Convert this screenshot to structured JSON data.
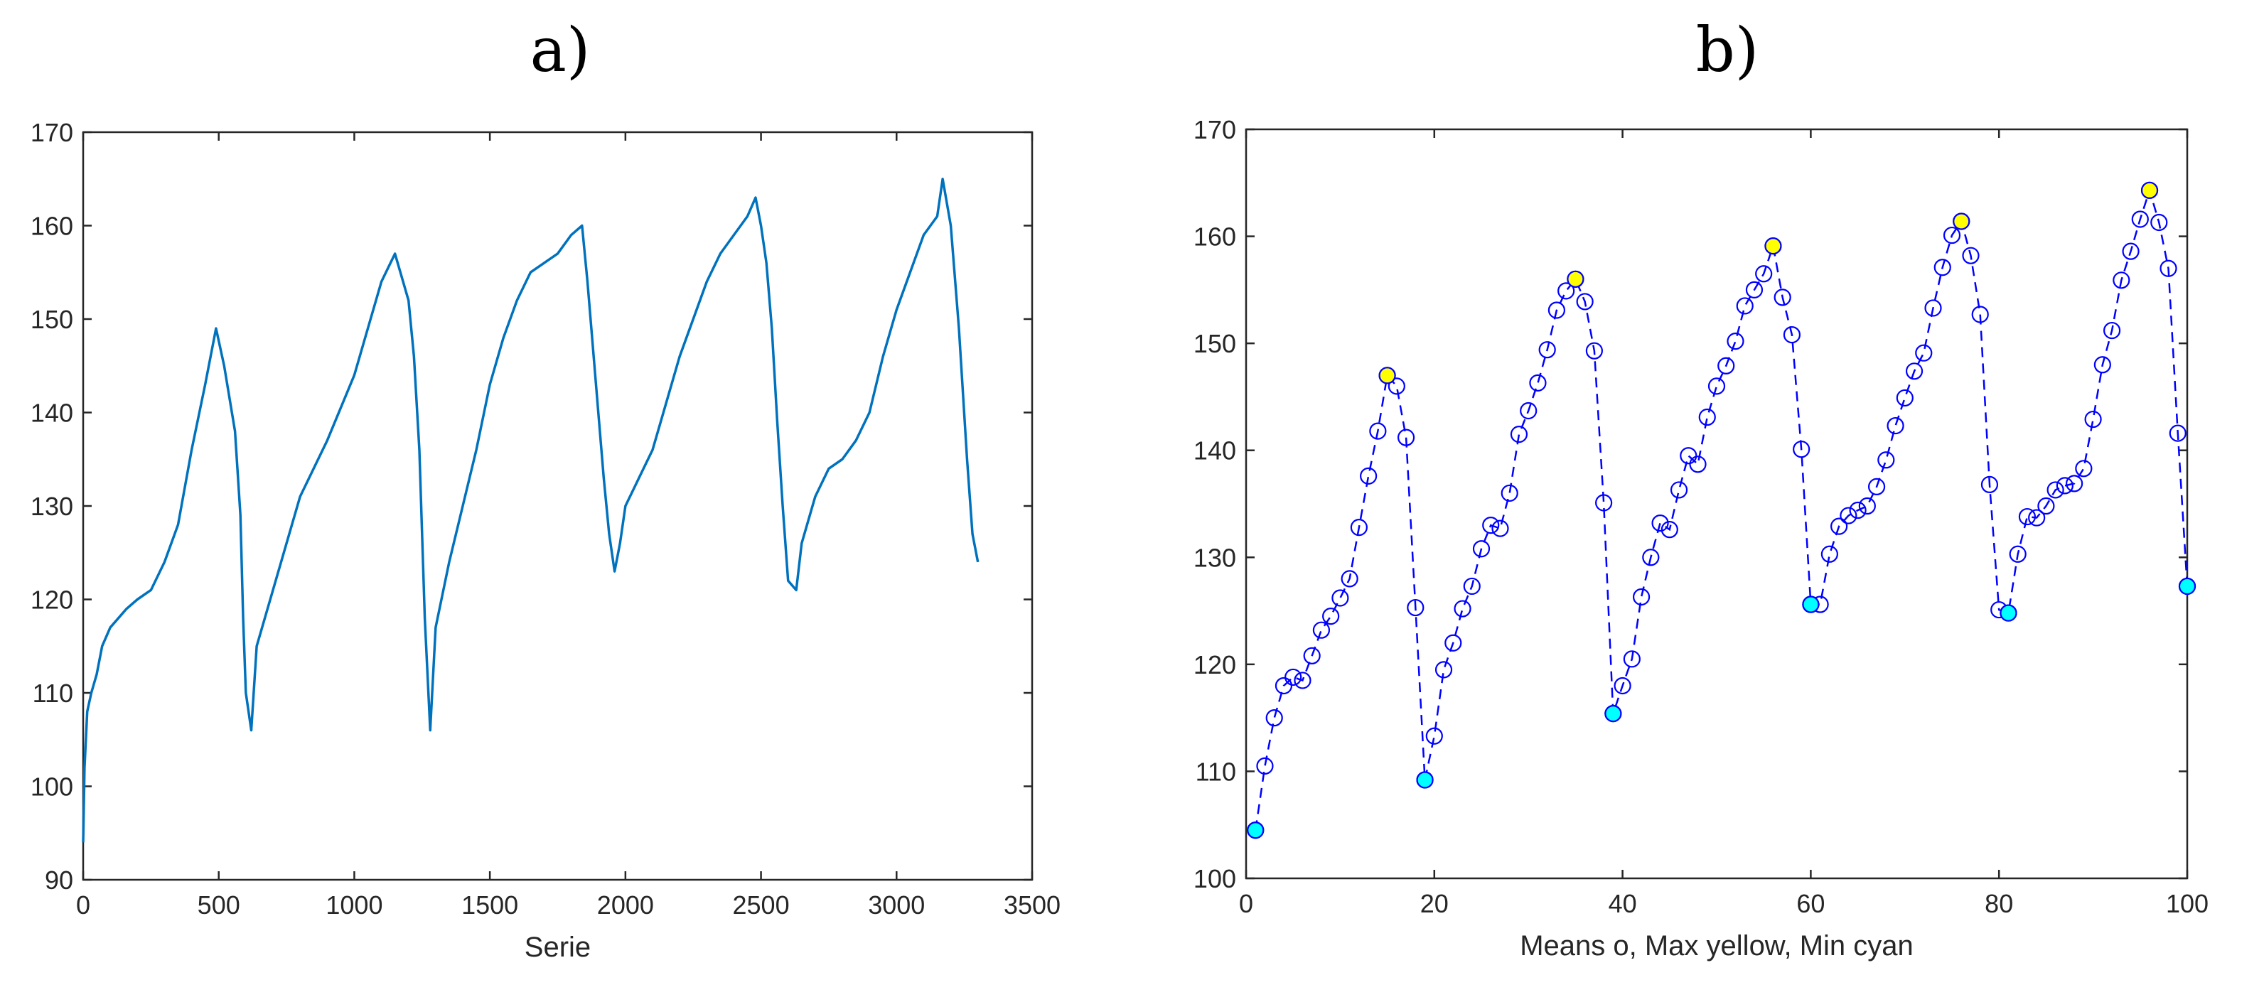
{
  "panels": [
    {
      "label": "a)"
    },
    {
      "label": "b)"
    }
  ],
  "chart_data": [
    {
      "type": "line",
      "title": "",
      "xlabel": "Serie",
      "ylabel": "",
      "xlim": [
        0,
        3500
      ],
      "ylim": [
        90,
        170
      ],
      "xticks": [
        0,
        500,
        1000,
        1500,
        2000,
        2500,
        3000,
        3500
      ],
      "yticks": [
        90,
        100,
        110,
        120,
        130,
        140,
        150,
        160,
        170
      ],
      "grid": false,
      "series": [
        {
          "color": "#0072bd",
          "x": [
            0,
            5,
            15,
            30,
            50,
            70,
            100,
            130,
            160,
            200,
            250,
            300,
            350,
            400,
            450,
            490,
            520,
            560,
            580,
            590,
            600,
            620,
            640,
            700,
            800,
            900,
            1000,
            1100,
            1150,
            1180,
            1200,
            1220,
            1240,
            1260,
            1270,
            1280,
            1300,
            1350,
            1400,
            1450,
            1500,
            1550,
            1600,
            1650,
            1700,
            1750,
            1800,
            1840,
            1860,
            1880,
            1900,
            1920,
            1940,
            1960,
            1980,
            2000,
            2050,
            2100,
            2150,
            2200,
            2250,
            2300,
            2350,
            2400,
            2450,
            2480,
            2500,
            2520,
            2540,
            2560,
            2580,
            2600,
            2630,
            2650,
            2700,
            2750,
            2800,
            2850,
            2900,
            2950,
            3000,
            3050,
            3100,
            3150,
            3170,
            3200,
            3230,
            3260,
            3280,
            3300
          ],
          "y": [
            94,
            102,
            108,
            110,
            112,
            115,
            117,
            118,
            119,
            120,
            121,
            124,
            128,
            136,
            143,
            149,
            145,
            138,
            129,
            118,
            110,
            106,
            115,
            121,
            131,
            137,
            144,
            154,
            157,
            154,
            152,
            146,
            136,
            118,
            112,
            106,
            117,
            124,
            130,
            136,
            143,
            148,
            152,
            155,
            156,
            157,
            159,
            160,
            154,
            147,
            140,
            133,
            127,
            123,
            126,
            130,
            133,
            136,
            141,
            146,
            150,
            154,
            157,
            159,
            161,
            163,
            160,
            156,
            149,
            139,
            130,
            122,
            121,
            126,
            131,
            134,
            135,
            137,
            140,
            146,
            151,
            155,
            159,
            161,
            165,
            160,
            149,
            135,
            127,
            124
          ]
        }
      ]
    },
    {
      "type": "line",
      "title": "",
      "xlabel": "Means o, Max yellow, Min cyan",
      "ylabel": "",
      "xlim": [
        0,
        100
      ],
      "ylim": [
        100,
        170
      ],
      "xticks": [
        0,
        20,
        40,
        60,
        80,
        100
      ],
      "yticks": [
        100,
        110,
        120,
        130,
        140,
        150,
        160,
        170
      ],
      "grid": false,
      "series": [
        {
          "style": "dashed-line-circle-markers",
          "color": "#0000ff",
          "x": [
            1,
            2,
            3,
            4,
            5,
            6,
            7,
            8,
            9,
            10,
            11,
            12,
            13,
            14,
            15,
            16,
            17,
            18,
            19,
            20,
            21,
            22,
            23,
            24,
            25,
            26,
            27,
            28,
            29,
            30,
            31,
            32,
            33,
            34,
            35,
            36,
            37,
            38,
            39,
            40,
            41,
            42,
            43,
            44,
            45,
            46,
            47,
            48,
            49,
            50,
            51,
            52,
            53,
            54,
            55,
            56,
            57,
            58,
            59,
            60,
            61,
            62,
            63,
            64,
            65,
            66,
            67,
            68,
            69,
            70,
            71,
            72,
            73,
            74,
            75,
            76,
            77,
            78,
            79,
            80,
            81,
            82,
            83,
            84,
            85,
            86,
            87,
            88,
            89,
            90,
            91,
            92,
            93,
            94,
            95,
            96,
            97,
            98,
            99,
            100
          ],
          "y": [
            104.5,
            110.5,
            115,
            118,
            118.8,
            118.5,
            120.8,
            123.2,
            124.5,
            126.2,
            128,
            132.8,
            137.6,
            141.8,
            147,
            146,
            141.2,
            125.3,
            109.2,
            113.3,
            119.5,
            122,
            125.2,
            127.3,
            130.8,
            133,
            132.7,
            136,
            141.5,
            143.7,
            146.3,
            149.4,
            153.1,
            154.9,
            156,
            153.9,
            149.3,
            135.1,
            115.4,
            118,
            120.5,
            126.3,
            130,
            133.2,
            132.6,
            136.3,
            139.5,
            138.7,
            143.1,
            146,
            147.9,
            150.2,
            153.5,
            155,
            156.5,
            159.1,
            154.3,
            150.8,
            140.1,
            125.6,
            125.6,
            130.3,
            132.9,
            133.9,
            134.4,
            134.8,
            136.6,
            139.1,
            142.3,
            144.9,
            147.4,
            149.1,
            153.3,
            157.1,
            160.1,
            161.4,
            158.2,
            152.7,
            136.8,
            125.1,
            124.8,
            130.3,
            133.8,
            133.7,
            134.8,
            136.3,
            136.7,
            136.9,
            138.3,
            142.9,
            148,
            151.2,
            155.9,
            158.6,
            161.6,
            164.3,
            161.3,
            157,
            141.6,
            127.3
          ]
        },
        {
          "name": "Max",
          "style": "filled-markers",
          "color": "#ffff00",
          "x": [
            15,
            35,
            56,
            76,
            96
          ],
          "y": [
            147,
            156,
            159.1,
            161.4,
            164.3
          ]
        },
        {
          "name": "Min",
          "style": "filled-markers",
          "color": "#00ffff",
          "x": [
            1,
            19,
            39,
            60,
            81,
            100
          ],
          "y": [
            104.5,
            109.2,
            115.4,
            125.6,
            124.8,
            127.3
          ]
        }
      ]
    }
  ]
}
